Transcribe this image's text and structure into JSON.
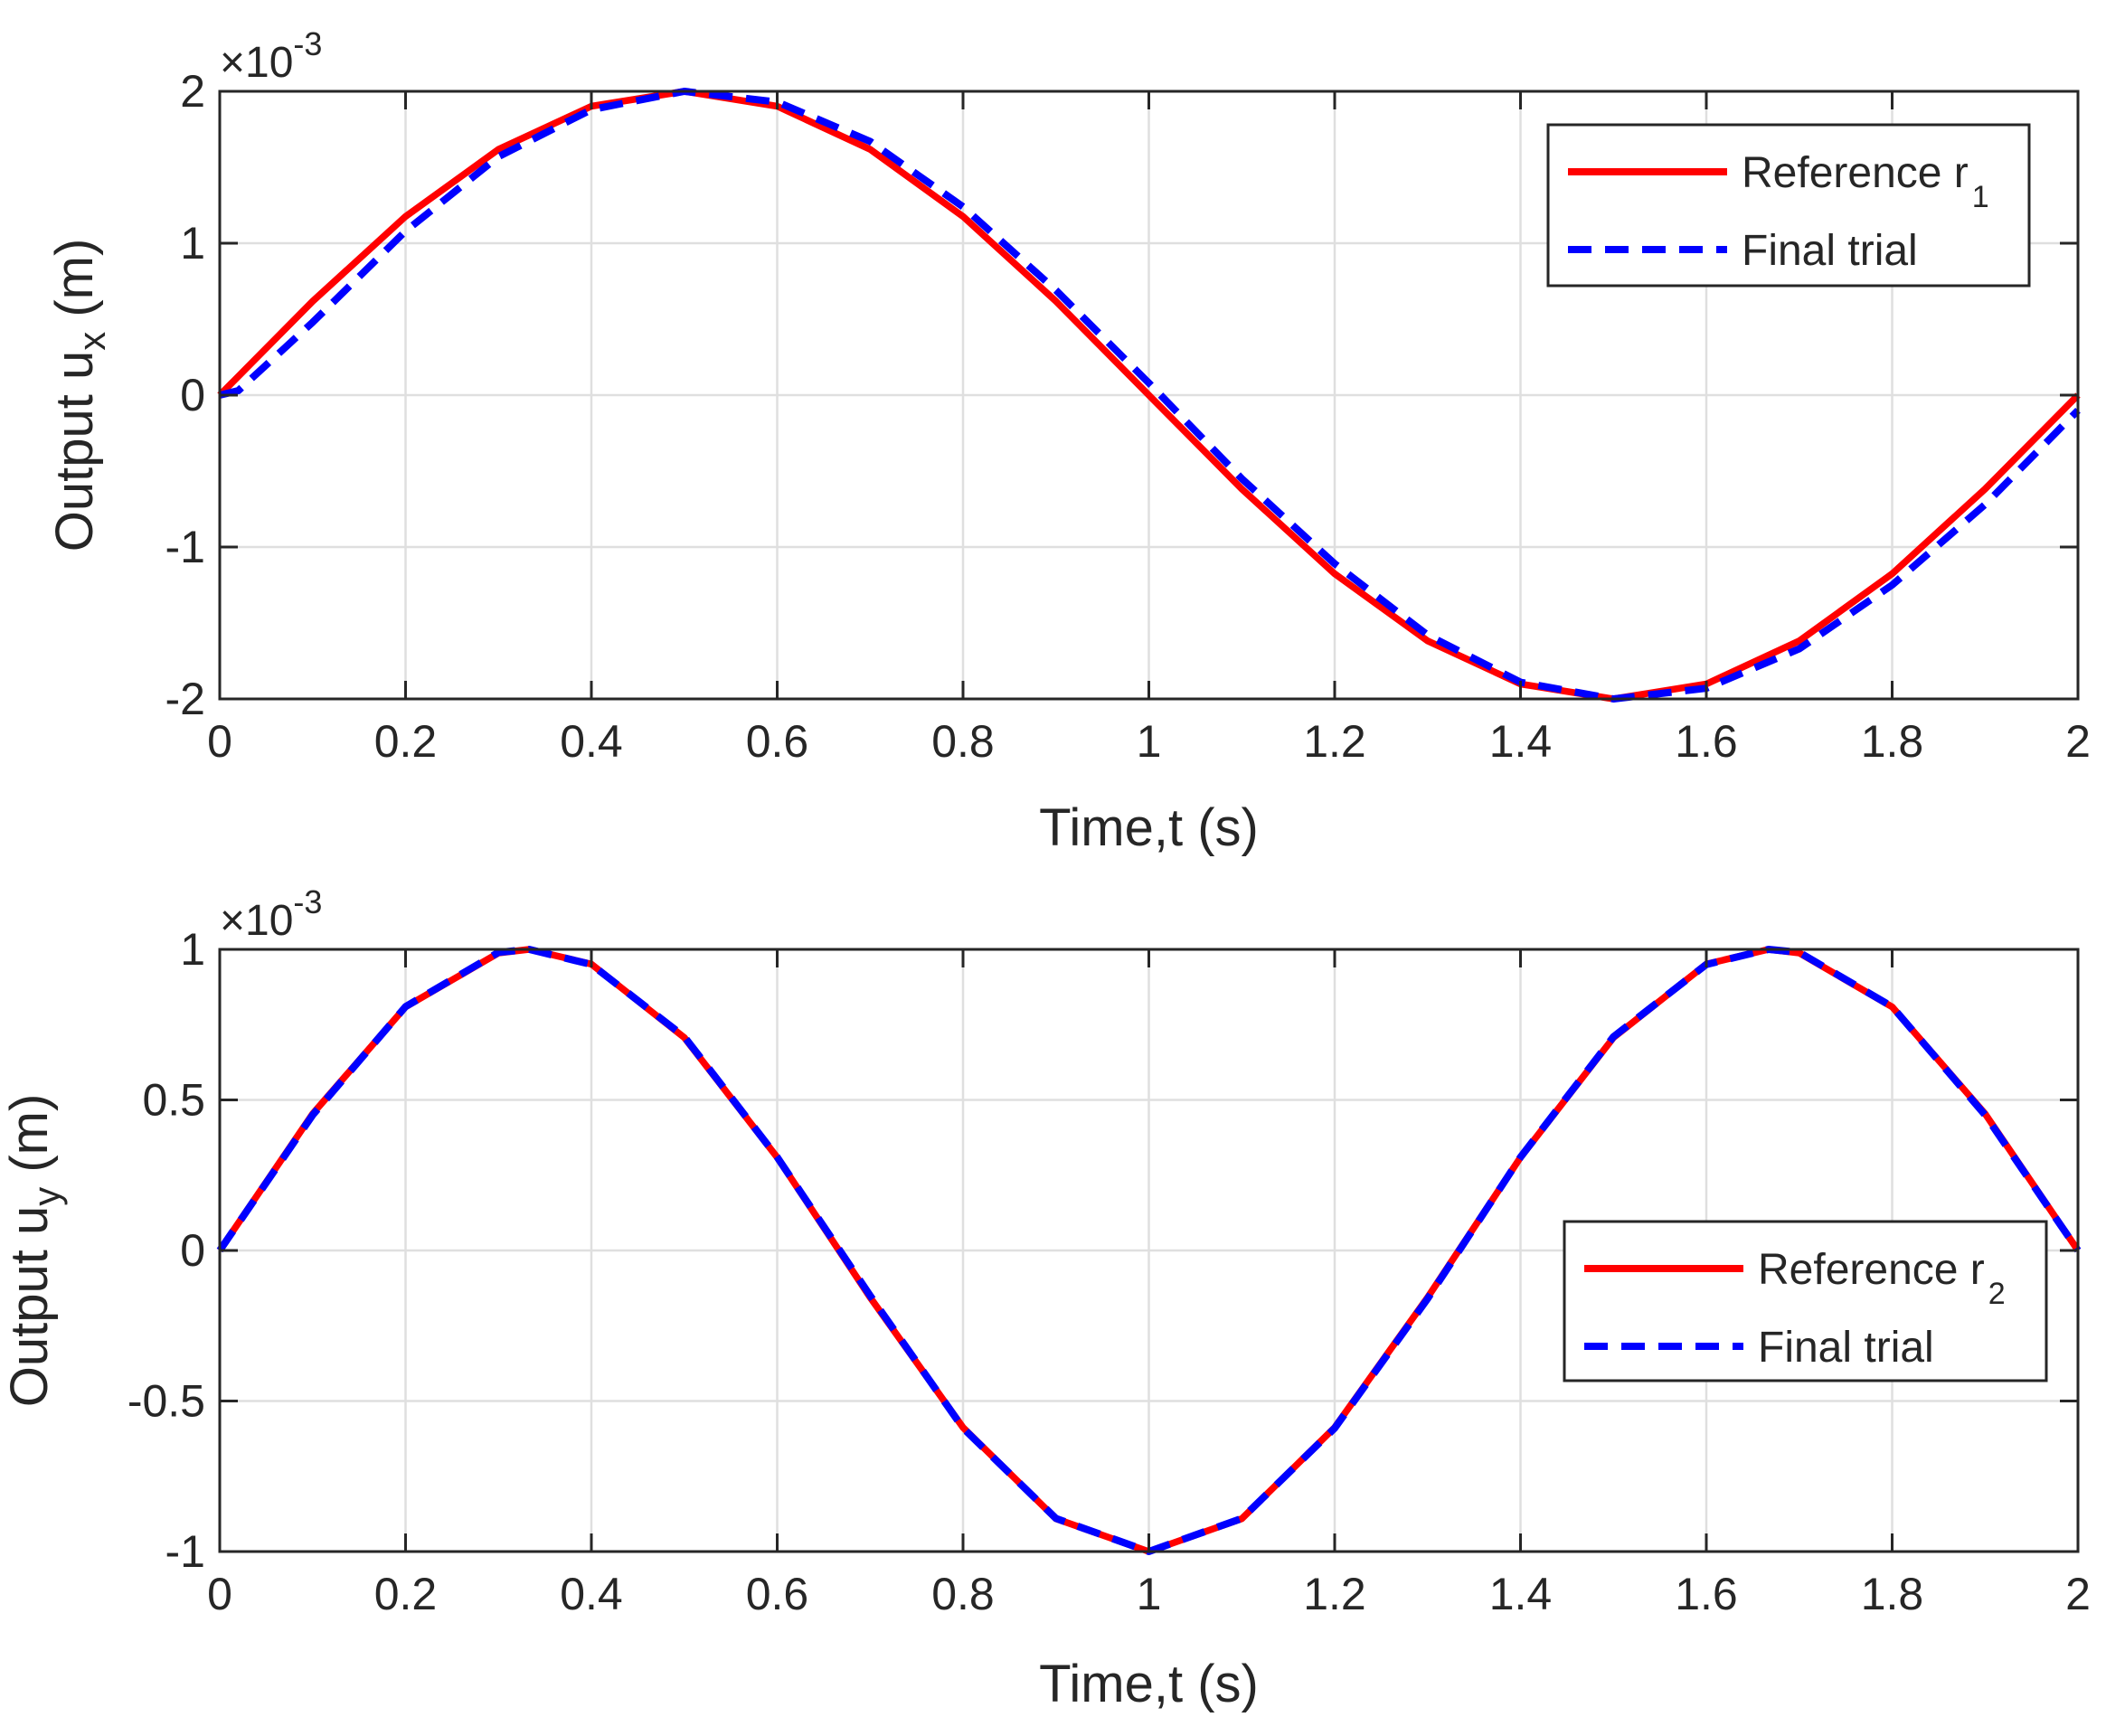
{
  "chart_data": [
    {
      "type": "line",
      "title": "",
      "xlabel": "Time,t (s)",
      "ylabel_main": "Output u",
      "ylabel_sub": "x",
      "ylabel_tail": " (m)",
      "exponent_label": "×10",
      "exponent_power": "-3",
      "xlim": [
        0,
        2
      ],
      "ylim": [
        -2,
        2
      ],
      "x_ticks": [
        0,
        0.2,
        0.4,
        0.6,
        0.8,
        1,
        1.2,
        1.4,
        1.6,
        1.8,
        2
      ],
      "x_tick_labels": [
        "0",
        "0.2",
        "0.4",
        "0.6",
        "0.8",
        "1",
        "1.2",
        "1.4",
        "1.6",
        "1.8",
        "2"
      ],
      "y_ticks": [
        -2,
        -1,
        0,
        1,
        2
      ],
      "y_tick_labels": [
        "-2",
        "-1",
        "0",
        "1",
        "2"
      ],
      "grid": true,
      "legend_position": "top-right",
      "series": [
        {
          "name": "Reference r",
          "name_sub": "1",
          "style": "solid",
          "color": "#ff0000",
          "x": [
            0,
            0.1,
            0.2,
            0.3,
            0.4,
            0.5,
            0.6,
            0.7,
            0.8,
            0.9,
            1.0,
            1.1,
            1.2,
            1.3,
            1.4,
            1.5,
            1.6,
            1.7,
            1.8,
            1.9,
            2.0
          ],
          "values": [
            0,
            0.618,
            1.176,
            1.618,
            1.902,
            2.0,
            1.902,
            1.618,
            1.176,
            0.618,
            0,
            -0.618,
            -1.176,
            -1.618,
            -1.902,
            -2.0,
            -1.902,
            -1.618,
            -1.176,
            -0.618,
            0
          ]
        },
        {
          "name": "Final trial",
          "name_sub": "",
          "style": "dashed",
          "color": "#0000ff",
          "x": [
            0,
            0.02,
            0.1,
            0.2,
            0.3,
            0.4,
            0.5,
            0.6,
            0.7,
            0.8,
            0.9,
            1.0,
            1.1,
            1.2,
            1.3,
            1.4,
            1.5,
            1.6,
            1.7,
            1.8,
            1.9,
            2.0
          ],
          "values": [
            0,
            0.03,
            0.48,
            1.08,
            1.57,
            1.88,
            2.0,
            1.93,
            1.67,
            1.24,
            0.69,
            0.08,
            -0.55,
            -1.11,
            -1.58,
            -1.89,
            -2.0,
            -1.93,
            -1.67,
            -1.25,
            -0.72,
            -0.1
          ]
        }
      ]
    },
    {
      "type": "line",
      "title": "",
      "xlabel": "Time,t (s)",
      "ylabel_main": "Output u",
      "ylabel_sub": "y",
      "ylabel_tail": " (m)",
      "exponent_label": "×10",
      "exponent_power": "-3",
      "xlim": [
        0,
        2
      ],
      "ylim": [
        -1,
        1
      ],
      "x_ticks": [
        0,
        0.2,
        0.4,
        0.6,
        0.8,
        1,
        1.2,
        1.4,
        1.6,
        1.8,
        2
      ],
      "x_tick_labels": [
        "0",
        "0.2",
        "0.4",
        "0.6",
        "0.8",
        "1",
        "1.2",
        "1.4",
        "1.6",
        "1.8",
        "2"
      ],
      "y_ticks": [
        -1,
        -0.5,
        0,
        0.5,
        1
      ],
      "y_tick_labels": [
        "-1",
        "-0.5",
        "0",
        "0.5",
        "1"
      ],
      "grid": true,
      "legend_position": "right",
      "series": [
        {
          "name": "Reference r",
          "name_sub": "2",
          "style": "solid",
          "color": "#ff0000",
          "x": [
            0,
            0.1,
            0.2,
            0.3,
            0.333,
            0.4,
            0.5,
            0.6,
            0.7,
            0.8,
            0.9,
            1.0,
            1.1,
            1.2,
            1.3,
            1.4,
            1.5,
            1.6,
            1.667,
            1.7,
            1.8,
            1.9,
            2.0
          ],
          "values": [
            0,
            0.454,
            0.809,
            0.988,
            1.0,
            0.951,
            0.707,
            0.309,
            -0.156,
            -0.588,
            -0.891,
            -1.0,
            -0.891,
            -0.588,
            -0.156,
            0.309,
            0.707,
            0.951,
            1.0,
            0.988,
            0.809,
            0.454,
            0
          ]
        },
        {
          "name": "Final  trial",
          "name_sub": "",
          "style": "dashed",
          "color": "#0000ff",
          "x": [
            0,
            0.1,
            0.2,
            0.3,
            0.333,
            0.4,
            0.5,
            0.6,
            0.7,
            0.8,
            0.9,
            1.0,
            1.1,
            1.2,
            1.3,
            1.4,
            1.5,
            1.6,
            1.667,
            1.7,
            1.8,
            1.9,
            2.0
          ],
          "values": [
            0,
            0.45,
            0.81,
            0.99,
            1.0,
            0.95,
            0.71,
            0.31,
            -0.15,
            -0.59,
            -0.89,
            -1.0,
            -0.89,
            -0.59,
            -0.16,
            0.31,
            0.71,
            0.95,
            1.0,
            0.99,
            0.81,
            0.45,
            0
          ]
        }
      ]
    }
  ]
}
